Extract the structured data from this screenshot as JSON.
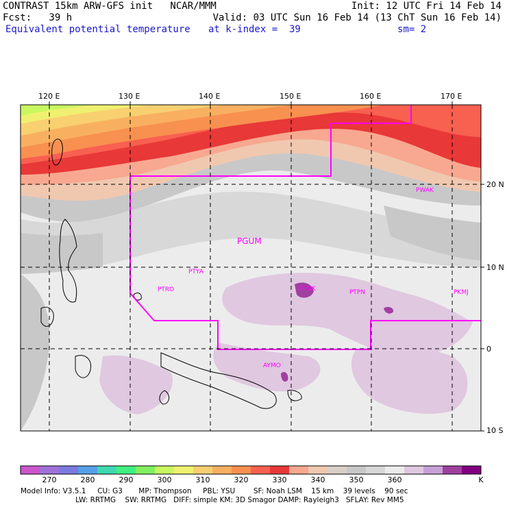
{
  "header": {
    "line1_left": "CONTRAST 15km ARW-GFS init   NCAR/MMM",
    "line1_right": "Init: 12 UTC Fri 14 Feb 14",
    "line2_left": "Fcst:   39 h",
    "line2_right": "Valid: 03 UTC Sun 16 Feb 14 (13 ChT Sun 16 Feb 14)",
    "line3_left": "Equivalent potential temperature",
    "line3_mid": "at k-index =  39",
    "line3_right": "sm= 2"
  },
  "axes": {
    "lon_labels": [
      "120 E",
      "130 E",
      "140 E",
      "150 E",
      "160 E",
      "170 E"
    ],
    "lat_labels": [
      "20 N",
      "10 N",
      "0",
      "10 S"
    ]
  },
  "stations": [
    {
      "id": "PGUM",
      "label": "PGUM"
    },
    {
      "id": "PTYA",
      "label": "PTYA"
    },
    {
      "id": "PTRO",
      "label": "PTRO"
    },
    {
      "id": "PTKK",
      "label": "PTKK"
    },
    {
      "id": "PTPN",
      "label": "PTPN"
    },
    {
      "id": "PKMJ",
      "label": "PKMJ"
    },
    {
      "id": "PWAK",
      "label": "PWAK"
    },
    {
      "id": "AYMO",
      "label": "AYMO"
    }
  ],
  "colorbar": {
    "ticks": [
      "270",
      "280",
      "290",
      "300",
      "310",
      "320",
      "330",
      "340",
      "350",
      "360"
    ],
    "unit": "K",
    "colors": [
      "#cc55cc",
      "#a070d8",
      "#7a7ae0",
      "#55a0e8",
      "#40d8b0",
      "#40f080",
      "#80f060",
      "#c8f860",
      "#f0f070",
      "#f8d070",
      "#f8b060",
      "#f89050",
      "#f86050",
      "#e83838",
      "#f8a890",
      "#f0c8b0",
      "#d8d0c8",
      "#c8c8c8",
      "#d8d8d8",
      "#ececec",
      "#e0c8e0",
      "#c8a0d8",
      "#a040a0",
      "#800080"
    ]
  },
  "footer": {
    "line1": "Model Info: V3.5.1     CU: G3       MP: Thompson     PBL: YSU        SF: Noah LSM    15 km    39 levels    90 sec",
    "line2": "                        LW: RRTMG    SW: RRTMG   DIFF: simple KM: 3D Smagor DAMP: Rayleigh3   SFLAY: Rev MM5"
  }
}
